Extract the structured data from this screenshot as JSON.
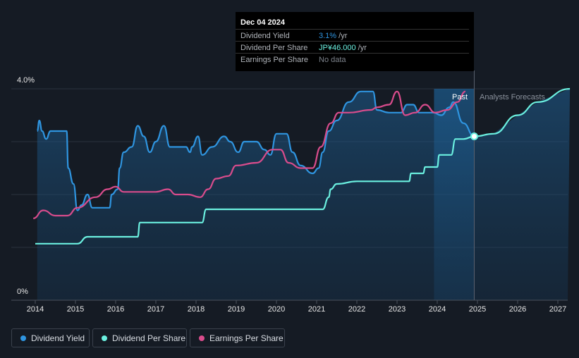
{
  "chart_data": {
    "type": "line",
    "x_unit": "year",
    "xlim": [
      2013.95,
      2027.3
    ],
    "ylim": [
      0,
      4.0
    ],
    "y_axis_labels": [
      "4.0%",
      "0%"
    ],
    "x_ticks": [
      "2014",
      "2015",
      "2016",
      "2017",
      "2018",
      "2019",
      "2020",
      "2021",
      "2022",
      "2023",
      "2024",
      "2025",
      "2026",
      "2027"
    ],
    "past_label": "Past",
    "forecast_label": "Analysts Forecasts",
    "forecast_band": [
      2023.92,
      2024.92
    ],
    "marker": {
      "x": 2024.92,
      "series": "Dividend Per Share"
    },
    "series": [
      {
        "name": "Dividend Yield",
        "color": "#2f95e0",
        "unit": "%",
        "points": [
          [
            2014.05,
            3.2
          ],
          [
            2014.1,
            3.4
          ],
          [
            2014.17,
            3.2
          ],
          [
            2014.27,
            3.05
          ],
          [
            2014.38,
            3.2
          ],
          [
            2014.5,
            3.2
          ],
          [
            2014.63,
            3.2
          ],
          [
            2014.78,
            3.2
          ],
          [
            2014.82,
            2.5
          ],
          [
            2014.95,
            2.2
          ],
          [
            2015.05,
            1.7
          ],
          [
            2015.15,
            1.8
          ],
          [
            2015.3,
            2.0
          ],
          [
            2015.42,
            1.75
          ],
          [
            2015.6,
            1.75
          ],
          [
            2015.75,
            1.75
          ],
          [
            2015.85,
            1.75
          ],
          [
            2015.9,
            2.0
          ],
          [
            2016.05,
            2.1
          ],
          [
            2016.1,
            2.5
          ],
          [
            2016.2,
            2.8
          ],
          [
            2016.4,
            2.9
          ],
          [
            2016.55,
            3.3
          ],
          [
            2016.7,
            3.1
          ],
          [
            2016.85,
            2.8
          ],
          [
            2017.0,
            3.0
          ],
          [
            2017.2,
            3.3
          ],
          [
            2017.35,
            2.9
          ],
          [
            2017.5,
            2.9
          ],
          [
            2017.75,
            2.9
          ],
          [
            2017.85,
            2.8
          ],
          [
            2017.9,
            2.9
          ],
          [
            2018.05,
            3.1
          ],
          [
            2018.15,
            2.75
          ],
          [
            2018.4,
            2.9
          ],
          [
            2018.7,
            3.1
          ],
          [
            2018.85,
            3.0
          ],
          [
            2019.05,
            2.8
          ],
          [
            2019.2,
            3.0
          ],
          [
            2019.5,
            3.0
          ],
          [
            2019.7,
            2.85
          ],
          [
            2019.85,
            2.75
          ],
          [
            2020.0,
            3.15
          ],
          [
            2020.25,
            3.15
          ],
          [
            2020.4,
            2.8
          ],
          [
            2020.6,
            2.55
          ],
          [
            2020.9,
            2.4
          ],
          [
            2021.05,
            2.5
          ],
          [
            2021.15,
            2.8
          ],
          [
            2021.3,
            3.2
          ],
          [
            2021.5,
            3.4
          ],
          [
            2021.8,
            3.75
          ],
          [
            2022.1,
            3.95
          ],
          [
            2022.4,
            3.95
          ],
          [
            2022.5,
            3.6
          ],
          [
            2022.8,
            3.55
          ],
          [
            2023.1,
            3.55
          ],
          [
            2023.25,
            3.7
          ],
          [
            2023.4,
            3.7
          ],
          [
            2023.55,
            3.55
          ],
          [
            2023.9,
            3.55
          ],
          [
            2024.1,
            3.5
          ],
          [
            2024.3,
            3.65
          ],
          [
            2024.4,
            3.75
          ],
          [
            2024.65,
            3.35
          ],
          [
            2024.92,
            3.1
          ]
        ]
      },
      {
        "name": "Dividend Per Share",
        "color": "#6bf0e0",
        "unit": "JPY",
        "points": [
          [
            2014.0,
            1.07
          ],
          [
            2015.05,
            1.07
          ],
          [
            2015.3,
            1.2
          ],
          [
            2016.55,
            1.2
          ],
          [
            2016.6,
            1.47
          ],
          [
            2018.15,
            1.47
          ],
          [
            2018.25,
            1.72
          ],
          [
            2019.6,
            1.72
          ],
          [
            2021.15,
            1.72
          ],
          [
            2021.3,
            1.95
          ],
          [
            2021.35,
            2.1
          ],
          [
            2021.5,
            2.2
          ],
          [
            2022.0,
            2.25
          ],
          [
            2022.3,
            2.25
          ],
          [
            2023.3,
            2.25
          ],
          [
            2023.35,
            2.4
          ],
          [
            2023.65,
            2.4
          ],
          [
            2023.7,
            2.52
          ],
          [
            2024.0,
            2.52
          ],
          [
            2024.05,
            2.75
          ],
          [
            2024.35,
            2.75
          ],
          [
            2024.45,
            3.05
          ],
          [
            2024.65,
            3.05
          ],
          [
            2024.92,
            3.1
          ],
          [
            2025.4,
            3.15
          ],
          [
            2026.0,
            3.5
          ],
          [
            2026.5,
            3.75
          ],
          [
            2027.3,
            4.0
          ]
        ]
      },
      {
        "name": "Earnings Per Share",
        "color": "#d94c8c",
        "unit": "JPY",
        "points": [
          [
            2013.95,
            1.55
          ],
          [
            2014.2,
            1.7
          ],
          [
            2014.5,
            1.6
          ],
          [
            2014.8,
            1.6
          ],
          [
            2015.05,
            1.75
          ],
          [
            2015.5,
            1.95
          ],
          [
            2015.8,
            2.1
          ],
          [
            2016.0,
            2.15
          ],
          [
            2016.2,
            2.05
          ],
          [
            2016.5,
            2.05
          ],
          [
            2017.0,
            2.05
          ],
          [
            2017.3,
            2.1
          ],
          [
            2017.5,
            2.0
          ],
          [
            2017.8,
            2.0
          ],
          [
            2018.1,
            1.95
          ],
          [
            2018.3,
            2.1
          ],
          [
            2018.5,
            2.3
          ],
          [
            2018.8,
            2.35
          ],
          [
            2019.0,
            2.55
          ],
          [
            2019.5,
            2.6
          ],
          [
            2019.9,
            2.85
          ],
          [
            2020.1,
            2.85
          ],
          [
            2020.3,
            2.6
          ],
          [
            2020.6,
            2.5
          ],
          [
            2020.9,
            2.5
          ],
          [
            2021.1,
            2.9
          ],
          [
            2021.35,
            3.35
          ],
          [
            2021.55,
            3.55
          ],
          [
            2021.8,
            3.55
          ],
          [
            2022.35,
            3.6
          ],
          [
            2022.5,
            3.65
          ],
          [
            2022.8,
            3.7
          ],
          [
            2023.0,
            3.95
          ],
          [
            2023.2,
            3.5
          ],
          [
            2023.45,
            3.55
          ],
          [
            2023.7,
            3.7
          ],
          [
            2023.95,
            3.55
          ],
          [
            2024.25,
            3.6
          ],
          [
            2024.5,
            3.75
          ],
          [
            2024.7,
            3.95
          ]
        ]
      }
    ]
  },
  "tooltip": {
    "date": "Dec 04 2024",
    "rows": [
      {
        "label": "Dividend Yield",
        "value": "3.1%",
        "unit": " /yr",
        "color": "#2f95e0"
      },
      {
        "label": "Dividend Per Share",
        "value": "JP¥46.000",
        "unit": " /yr",
        "color": "#6bf0e0"
      },
      {
        "label": "Earnings Per Share",
        "value": "No data",
        "unit": "",
        "color": "#7d838c"
      }
    ]
  },
  "legend": [
    {
      "label": "Dividend Yield",
      "color": "#2f95e0"
    },
    {
      "label": "Dividend Per Share",
      "color": "#6bf0e0"
    },
    {
      "label": "Earnings Per Share",
      "color": "#d94c8c"
    }
  ]
}
